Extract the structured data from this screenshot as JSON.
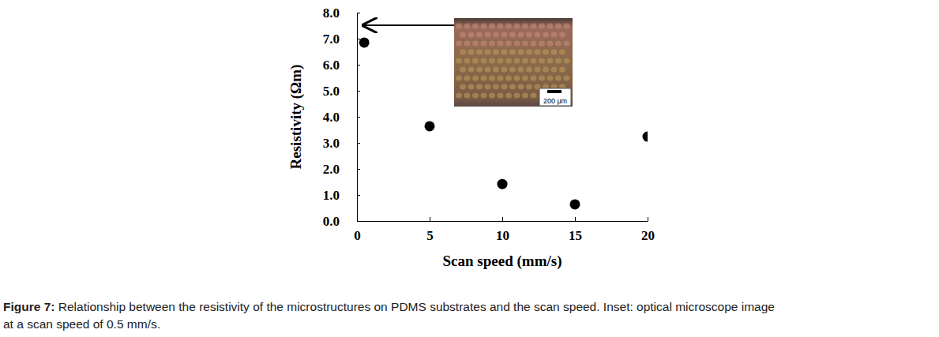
{
  "chart_data": {
    "type": "scatter",
    "x_label": "Scan speed (mm/s)",
    "y_label": "Resistivity (Ωm)",
    "x": [
      0.5,
      5,
      10,
      15,
      20
    ],
    "values": [
      6.85,
      3.64,
      1.42,
      0.64,
      3.24
    ],
    "color": "#000000",
    "marker": "circle",
    "xlim": [
      0,
      20
    ],
    "xticks": [
      0,
      5,
      10,
      15,
      20
    ],
    "ylim": [
      0,
      8
    ],
    "yticks": [
      {
        "value": 0,
        "label": "0.0"
      },
      {
        "value": 1,
        "label": "1.0"
      },
      {
        "value": 2,
        "label": "2.0"
      },
      {
        "value": 3,
        "label": "3.0"
      },
      {
        "value": 4,
        "label": "4.0"
      },
      {
        "value": 5,
        "label": "5.0"
      },
      {
        "value": 6,
        "label": "6.0"
      },
      {
        "value": 7,
        "label": "7.0"
      },
      {
        "value": 8,
        "label": "8.0"
      }
    ],
    "grid": false,
    "annotations": [
      "200 μm"
    ],
    "caption_label": "Figure 7:",
    "caption_lines": [
      " Relationship between the resistivity of the microstructures on PDMS substrates and the scan speed. Inset: optical microscope image",
      "at a scan speed of 0.5 mm/s."
    ]
  }
}
